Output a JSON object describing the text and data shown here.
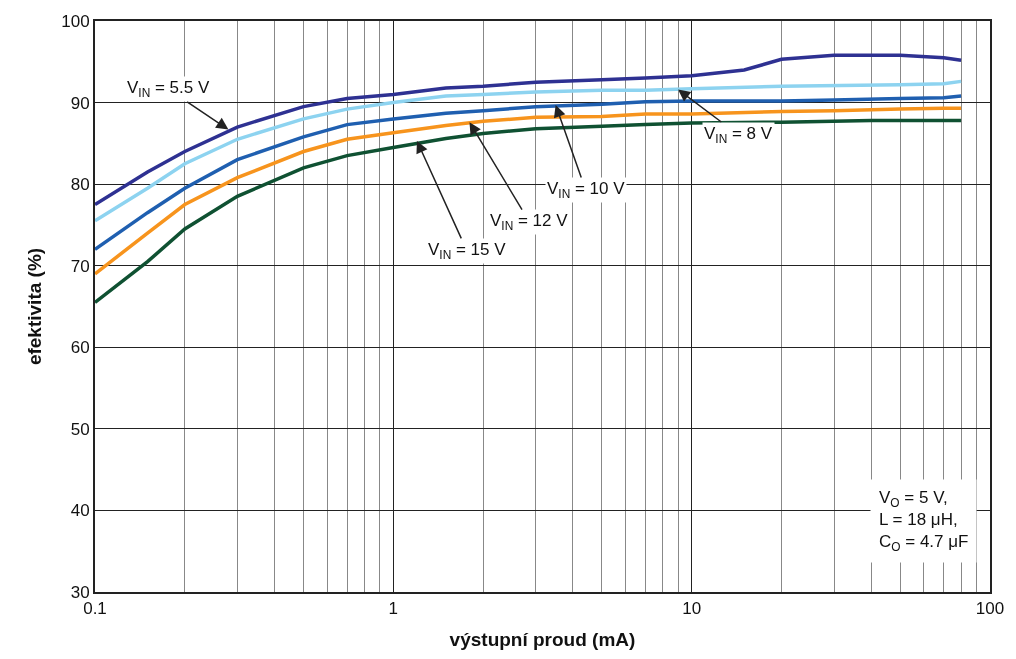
{
  "chart_data": {
    "type": "line",
    "xlabel": "výstupní proud (mA)",
    "ylabel": "efektivita (%)",
    "log": "x",
    "grid": true,
    "marker": "none",
    "line_style": "solid",
    "xlim": [
      0.1,
      100
    ],
    "xticks": [
      0.1,
      1,
      10,
      100
    ],
    "ylim": [
      30,
      100
    ],
    "yticks": [
      30,
      40,
      50,
      60,
      70,
      80,
      90,
      100
    ],
    "series": [
      {
        "color": "#2e3192",
        "x": [
          0.1,
          0.15,
          0.2,
          0.3,
          0.5,
          0.7,
          1,
          1.5,
          2,
          3,
          5,
          7,
          10,
          15,
          20,
          30,
          50,
          70,
          80
        ],
        "values": [
          77.5,
          81.5,
          84,
          87,
          89.5,
          90.5,
          91,
          91.8,
          92,
          92.5,
          92.8,
          93,
          93.3,
          94,
          95.3,
          95.8,
          95.8,
          95.5,
          95.2
        ]
      },
      {
        "color": "#8dd3f0",
        "x": [
          0.1,
          0.15,
          0.2,
          0.3,
          0.5,
          0.7,
          1,
          1.5,
          2,
          3,
          5,
          7,
          10,
          20,
          50,
          70,
          80
        ],
        "values": [
          75.5,
          79.5,
          82.5,
          85.5,
          88,
          89.2,
          90,
          90.8,
          91,
          91.3,
          91.5,
          91.5,
          91.7,
          92,
          92.2,
          92.3,
          92.6
        ]
      },
      {
        "color": "#1f5fb0",
        "x": [
          0.1,
          0.15,
          0.2,
          0.3,
          0.5,
          0.7,
          1,
          1.5,
          2,
          3,
          5,
          7,
          10,
          20,
          30,
          50,
          70,
          80
        ],
        "values": [
          72,
          76.5,
          79.5,
          83,
          85.8,
          87.3,
          88,
          88.7,
          89,
          89.5,
          89.8,
          90.1,
          90.2,
          90.2,
          90.3,
          90.5,
          90.6,
          90.8
        ]
      },
      {
        "color": "#f7941d",
        "x": [
          0.1,
          0.15,
          0.2,
          0.3,
          0.5,
          0.7,
          1,
          1.5,
          2,
          3,
          5,
          7,
          10,
          20,
          30,
          50,
          70,
          80
        ],
        "values": [
          69,
          74,
          77.5,
          80.8,
          84,
          85.5,
          86.3,
          87.2,
          87.7,
          88.2,
          88.3,
          88.6,
          88.6,
          88.9,
          89,
          89.2,
          89.3,
          89.3
        ]
      },
      {
        "color": "#0f5132",
        "x": [
          0.1,
          0.15,
          0.2,
          0.3,
          0.5,
          0.7,
          1,
          1.5,
          2,
          3,
          5,
          7,
          10,
          20,
          40,
          80
        ],
        "values": [
          65.5,
          70.5,
          74.5,
          78.5,
          82,
          83.5,
          84.5,
          85.6,
          86.2,
          86.8,
          87.1,
          87.3,
          87.5,
          87.6,
          87.8,
          87.8
        ]
      }
    ],
    "annotations": [
      {
        "text": "V$_{IN}$ = 5.5 V",
        "x": 0.28,
        "y": 86.7
      },
      {
        "text": "V$_{IN}$ = 8 V",
        "x": 9,
        "y": 91.6
      },
      {
        "text": "V$_{IN}$ = 10 V",
        "x": 3.5,
        "y": 89.7
      },
      {
        "text": "V$_{IN}$ = 12 V",
        "x": 1.8,
        "y": 87.6
      },
      {
        "text": "V$_{IN}$ = 15 V",
        "x": 1.2,
        "y": 85.3
      },
      "V$_{O}$ = 5 V,\nL = 18 μH,\nC$_{O}$ = 4.7 μF"
    ]
  }
}
